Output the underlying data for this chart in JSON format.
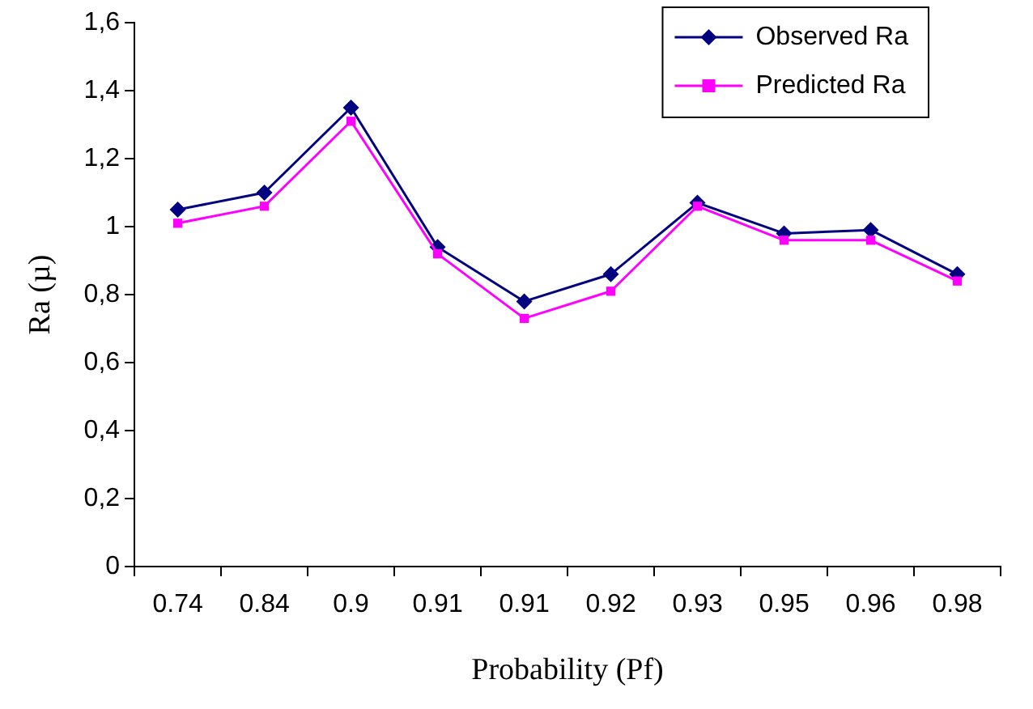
{
  "chart_data": {
    "type": "line",
    "xlabel": "Probability (Pf)",
    "ylabel": "Ra (µ)",
    "categories": [
      "0.74",
      "0.84",
      "0.9",
      "0.91",
      "0.91",
      "0.92",
      "0.93",
      "0.95",
      "0.96",
      "0.98"
    ],
    "series": [
      {
        "name": "Observed Ra",
        "color": "#000080",
        "marker": "diamond",
        "values": [
          1.05,
          1.1,
          1.35,
          0.94,
          0.78,
          0.86,
          1.07,
          0.98,
          0.99,
          0.86
        ]
      },
      {
        "name": "Predicted Ra",
        "color": "#ff00ff",
        "marker": "square",
        "values": [
          1.01,
          1.06,
          1.31,
          0.92,
          0.73,
          0.81,
          1.06,
          0.96,
          0.96,
          0.84
        ]
      }
    ],
    "ylim": [
      0,
      1.6
    ],
    "yticks": [
      0,
      {
        "value": 0.2,
        "label": "0,2"
      },
      {
        "value": 0.4,
        "label": "0,4"
      },
      {
        "value": 0.6,
        "label": "0,6"
      },
      {
        "value": 0.8,
        "label": "0,8"
      },
      1,
      {
        "value": 1.2,
        "label": "1,2"
      },
      {
        "value": 1.4,
        "label": "1,4"
      },
      {
        "value": 1.6,
        "label": "1,6"
      }
    ],
    "grid": false,
    "legend": "top right",
    "line_style": "solid"
  }
}
